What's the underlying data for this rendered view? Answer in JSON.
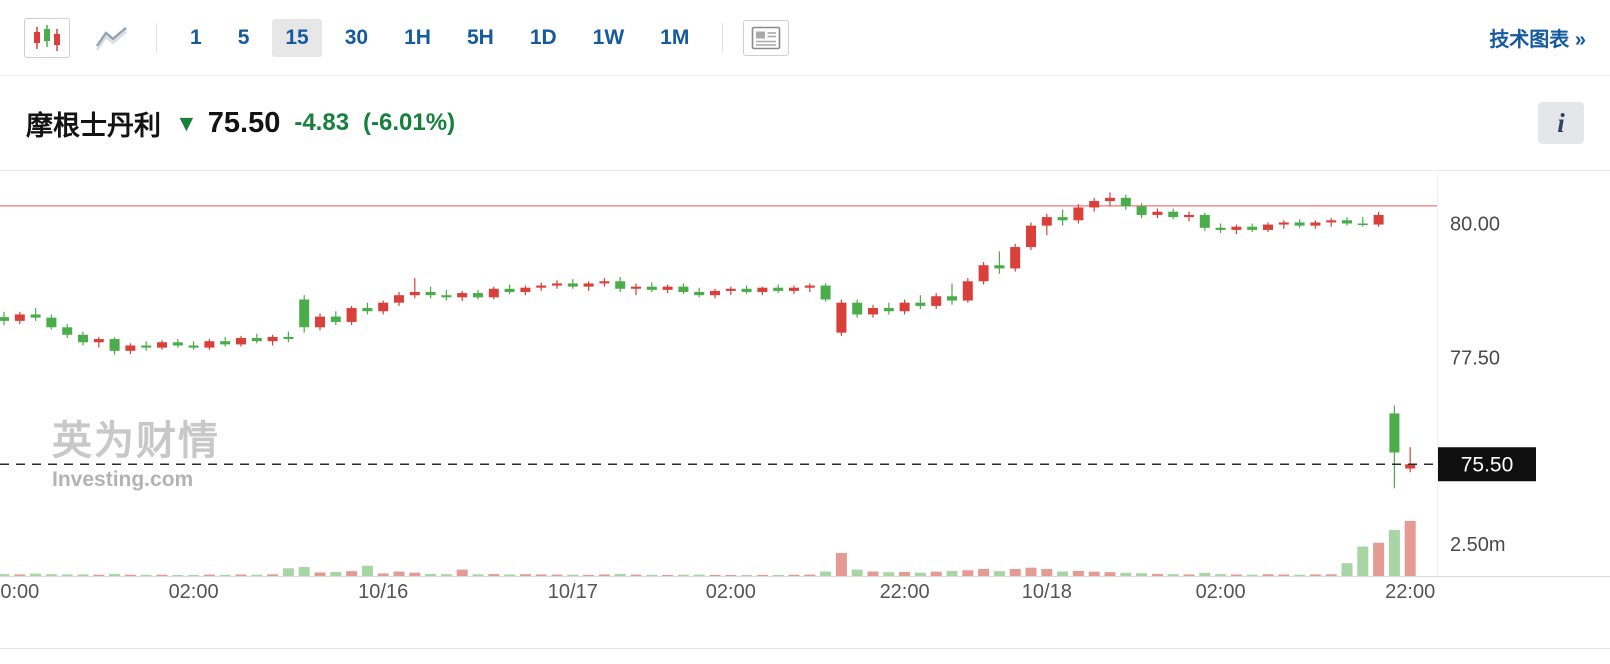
{
  "toolbar": {
    "candlestick_icon": "candlestick-chart-icon",
    "line_icon": "line-chart-icon",
    "panel_icon": "news-panel-icon",
    "intervals": [
      "1",
      "5",
      "15",
      "30",
      "1H",
      "5H",
      "1D",
      "1W",
      "1M"
    ],
    "selected_interval": "15",
    "tech_chart_link": "技术图表 »"
  },
  "header": {
    "instrument": "摩根士丹利",
    "direction_arrow": "▼",
    "price": "75.50",
    "change": "-4.83",
    "change_pct": "(-6.01%)",
    "change_color": "#17803d",
    "info_button": "i"
  },
  "watermark": {
    "cn": "英为财情",
    "en": "Investing.com"
  },
  "chart_data": {
    "type": "candlestick",
    "instrument": "摩根士丹利",
    "interval": "15m",
    "candle_format": [
      "open",
      "high",
      "low",
      "close",
      "volume_millions"
    ],
    "price_axis": {
      "range": [
        75.0,
        81.0
      ],
      "ticks": [
        80.0,
        77.5
      ],
      "tick_labels": [
        "80.00",
        "77.50"
      ],
      "current_price": 75.5,
      "current_price_label": "75.50",
      "prev_close": 80.33
    },
    "volume_axis": {
      "tick": 2.5,
      "tick_label": "2.50m"
    },
    "x_labels": [
      {
        "i": 1,
        "t": "0:00"
      },
      {
        "i": 12,
        "t": "02:00"
      },
      {
        "i": 24,
        "t": "10/16"
      },
      {
        "i": 36,
        "t": "10/17"
      },
      {
        "i": 46,
        "t": "02:00"
      },
      {
        "i": 57,
        "t": "22:00"
      },
      {
        "i": 66,
        "t": "10/18"
      },
      {
        "i": 77,
        "t": "02:00"
      },
      {
        "i": 89,
        "t": "22:00"
      }
    ],
    "colors": {
      "up": "#d9403a",
      "down": "#4aad4a",
      "up_vol": "#e59b94",
      "down_vol": "#a8d5a4",
      "prev_close_line": "#ee7676",
      "current_price_line": "#2a2a2a",
      "badge_bg": "#0f0f0f",
      "badge_text": "#ffffff"
    },
    "candles": [
      [
        78.25,
        78.35,
        78.1,
        78.18,
        0.15
      ],
      [
        78.18,
        78.35,
        78.12,
        78.3,
        0.12
      ],
      [
        78.3,
        78.42,
        78.18,
        78.24,
        0.18
      ],
      [
        78.24,
        78.3,
        78.02,
        78.06,
        0.14
      ],
      [
        78.06,
        78.12,
        77.86,
        77.92,
        0.12
      ],
      [
        77.92,
        77.98,
        77.72,
        77.78,
        0.12
      ],
      [
        77.78,
        77.88,
        77.68,
        77.84,
        0.1
      ],
      [
        77.84,
        77.88,
        77.55,
        77.62,
        0.16
      ],
      [
        77.62,
        77.76,
        77.56,
        77.72,
        0.1
      ],
      [
        77.72,
        77.8,
        77.62,
        77.68,
        0.09
      ],
      [
        77.68,
        77.82,
        77.64,
        77.78,
        0.1
      ],
      [
        77.78,
        77.84,
        77.68,
        77.72,
        0.08
      ],
      [
        77.72,
        77.8,
        77.64,
        77.68,
        0.08
      ],
      [
        77.68,
        77.84,
        77.64,
        77.8,
        0.11
      ],
      [
        77.8,
        77.88,
        77.7,
        77.74,
        0.09
      ],
      [
        77.74,
        77.9,
        77.7,
        77.86,
        0.12
      ],
      [
        77.86,
        77.94,
        77.76,
        77.8,
        0.1
      ],
      [
        77.8,
        77.92,
        77.72,
        77.88,
        0.13
      ],
      [
        77.88,
        77.98,
        77.78,
        77.84,
        0.6
      ],
      [
        78.58,
        78.66,
        77.96,
        78.06,
        0.7
      ],
      [
        78.06,
        78.32,
        78.0,
        78.26,
        0.28
      ],
      [
        78.26,
        78.36,
        78.1,
        78.16,
        0.32
      ],
      [
        78.16,
        78.46,
        78.1,
        78.42,
        0.38
      ],
      [
        78.42,
        78.52,
        78.3,
        78.36,
        0.8
      ],
      [
        78.36,
        78.56,
        78.3,
        78.52,
        0.2
      ],
      [
        78.52,
        78.72,
        78.46,
        78.66,
        0.35
      ],
      [
        78.66,
        78.98,
        78.6,
        78.72,
        0.26
      ],
      [
        78.72,
        78.82,
        78.6,
        78.66,
        0.16
      ],
      [
        78.66,
        78.76,
        78.56,
        78.62,
        0.14
      ],
      [
        78.62,
        78.74,
        78.55,
        78.7,
        0.5
      ],
      [
        78.7,
        78.76,
        78.58,
        78.62,
        0.13
      ],
      [
        78.62,
        78.82,
        78.58,
        78.78,
        0.15
      ],
      [
        78.78,
        78.86,
        78.68,
        78.72,
        0.12
      ],
      [
        78.72,
        78.84,
        78.66,
        78.8,
        0.14
      ],
      [
        78.8,
        78.9,
        78.74,
        78.84,
        0.12
      ],
      [
        78.84,
        78.94,
        78.78,
        78.88,
        0.11
      ],
      [
        78.88,
        78.96,
        78.78,
        78.82,
        0.1
      ],
      [
        78.82,
        78.92,
        78.74,
        78.88,
        0.09
      ],
      [
        78.88,
        78.98,
        78.82,
        78.92,
        0.12
      ],
      [
        78.92,
        79.0,
        78.72,
        78.78,
        0.16
      ],
      [
        78.78,
        78.88,
        78.66,
        78.82,
        0.11
      ],
      [
        78.82,
        78.9,
        78.72,
        78.76,
        0.09
      ],
      [
        78.76,
        78.86,
        78.7,
        78.82,
        0.08
      ],
      [
        78.82,
        78.88,
        78.68,
        78.72,
        0.1
      ],
      [
        78.72,
        78.8,
        78.62,
        78.66,
        0.11
      ],
      [
        78.66,
        78.78,
        78.6,
        78.74,
        0.09
      ],
      [
        78.74,
        78.82,
        78.66,
        78.78,
        0.08
      ],
      [
        78.78,
        78.84,
        78.68,
        78.72,
        0.08
      ],
      [
        78.72,
        78.82,
        78.66,
        78.8,
        0.09
      ],
      [
        78.8,
        78.86,
        78.7,
        78.74,
        0.08
      ],
      [
        78.74,
        78.84,
        78.68,
        78.8,
        0.1
      ],
      [
        78.8,
        78.88,
        78.72,
        78.84,
        0.11
      ],
      [
        78.84,
        78.88,
        78.54,
        78.58,
        0.35
      ],
      [
        77.96,
        78.58,
        77.9,
        78.52,
        1.8
      ],
      [
        78.52,
        78.58,
        78.24,
        78.3,
        0.5
      ],
      [
        78.3,
        78.48,
        78.24,
        78.42,
        0.35
      ],
      [
        78.42,
        78.52,
        78.3,
        78.36,
        0.3
      ],
      [
        78.36,
        78.58,
        78.3,
        78.52,
        0.32
      ],
      [
        78.52,
        78.66,
        78.4,
        78.46,
        0.26
      ],
      [
        78.46,
        78.7,
        78.4,
        78.64,
        0.34
      ],
      [
        78.64,
        78.88,
        78.48,
        78.56,
        0.4
      ],
      [
        78.56,
        78.98,
        78.52,
        78.92,
        0.45
      ],
      [
        78.92,
        79.28,
        78.86,
        79.22,
        0.55
      ],
      [
        79.22,
        79.48,
        79.06,
        79.16,
        0.38
      ],
      [
        79.16,
        79.62,
        79.1,
        79.56,
        0.55
      ],
      [
        79.56,
        80.02,
        79.5,
        79.96,
        0.65
      ],
      [
        79.96,
        80.18,
        79.78,
        80.12,
        0.55
      ],
      [
        80.12,
        80.26,
        79.96,
        80.06,
        0.35
      ],
      [
        80.06,
        80.36,
        80.0,
        80.3,
        0.4
      ],
      [
        80.3,
        80.48,
        80.22,
        80.42,
        0.34
      ],
      [
        80.42,
        80.58,
        80.32,
        80.48,
        0.3
      ],
      [
        80.48,
        80.54,
        80.26,
        80.32,
        0.25
      ],
      [
        80.32,
        80.38,
        80.1,
        80.16,
        0.22
      ],
      [
        80.16,
        80.28,
        80.1,
        80.22,
        0.16
      ],
      [
        80.22,
        80.28,
        80.08,
        80.12,
        0.14
      ],
      [
        80.12,
        80.22,
        80.04,
        80.16,
        0.12
      ],
      [
        80.16,
        80.2,
        79.86,
        79.92,
        0.25
      ],
      [
        79.92,
        80.0,
        79.82,
        79.88,
        0.14
      ],
      [
        79.88,
        79.98,
        79.8,
        79.94,
        0.12
      ],
      [
        79.94,
        80.0,
        79.84,
        79.88,
        0.1
      ],
      [
        79.88,
        80.02,
        79.84,
        79.98,
        0.14
      ],
      [
        79.98,
        80.06,
        79.9,
        80.02,
        0.12
      ],
      [
        80.02,
        80.08,
        79.92,
        79.96,
        0.1
      ],
      [
        79.96,
        80.06,
        79.9,
        80.02,
        0.12
      ],
      [
        80.02,
        80.1,
        79.94,
        80.06,
        0.13
      ],
      [
        80.06,
        80.12,
        79.96,
        80.0,
        1.0
      ],
      [
        80.0,
        80.12,
        79.94,
        79.98,
        2.3
      ],
      [
        79.98,
        80.22,
        79.94,
        80.16,
        2.6
      ],
      [
        76.45,
        76.6,
        75.05,
        75.72,
        3.6
      ],
      [
        75.42,
        75.82,
        75.35,
        75.5,
        4.3
      ]
    ]
  }
}
